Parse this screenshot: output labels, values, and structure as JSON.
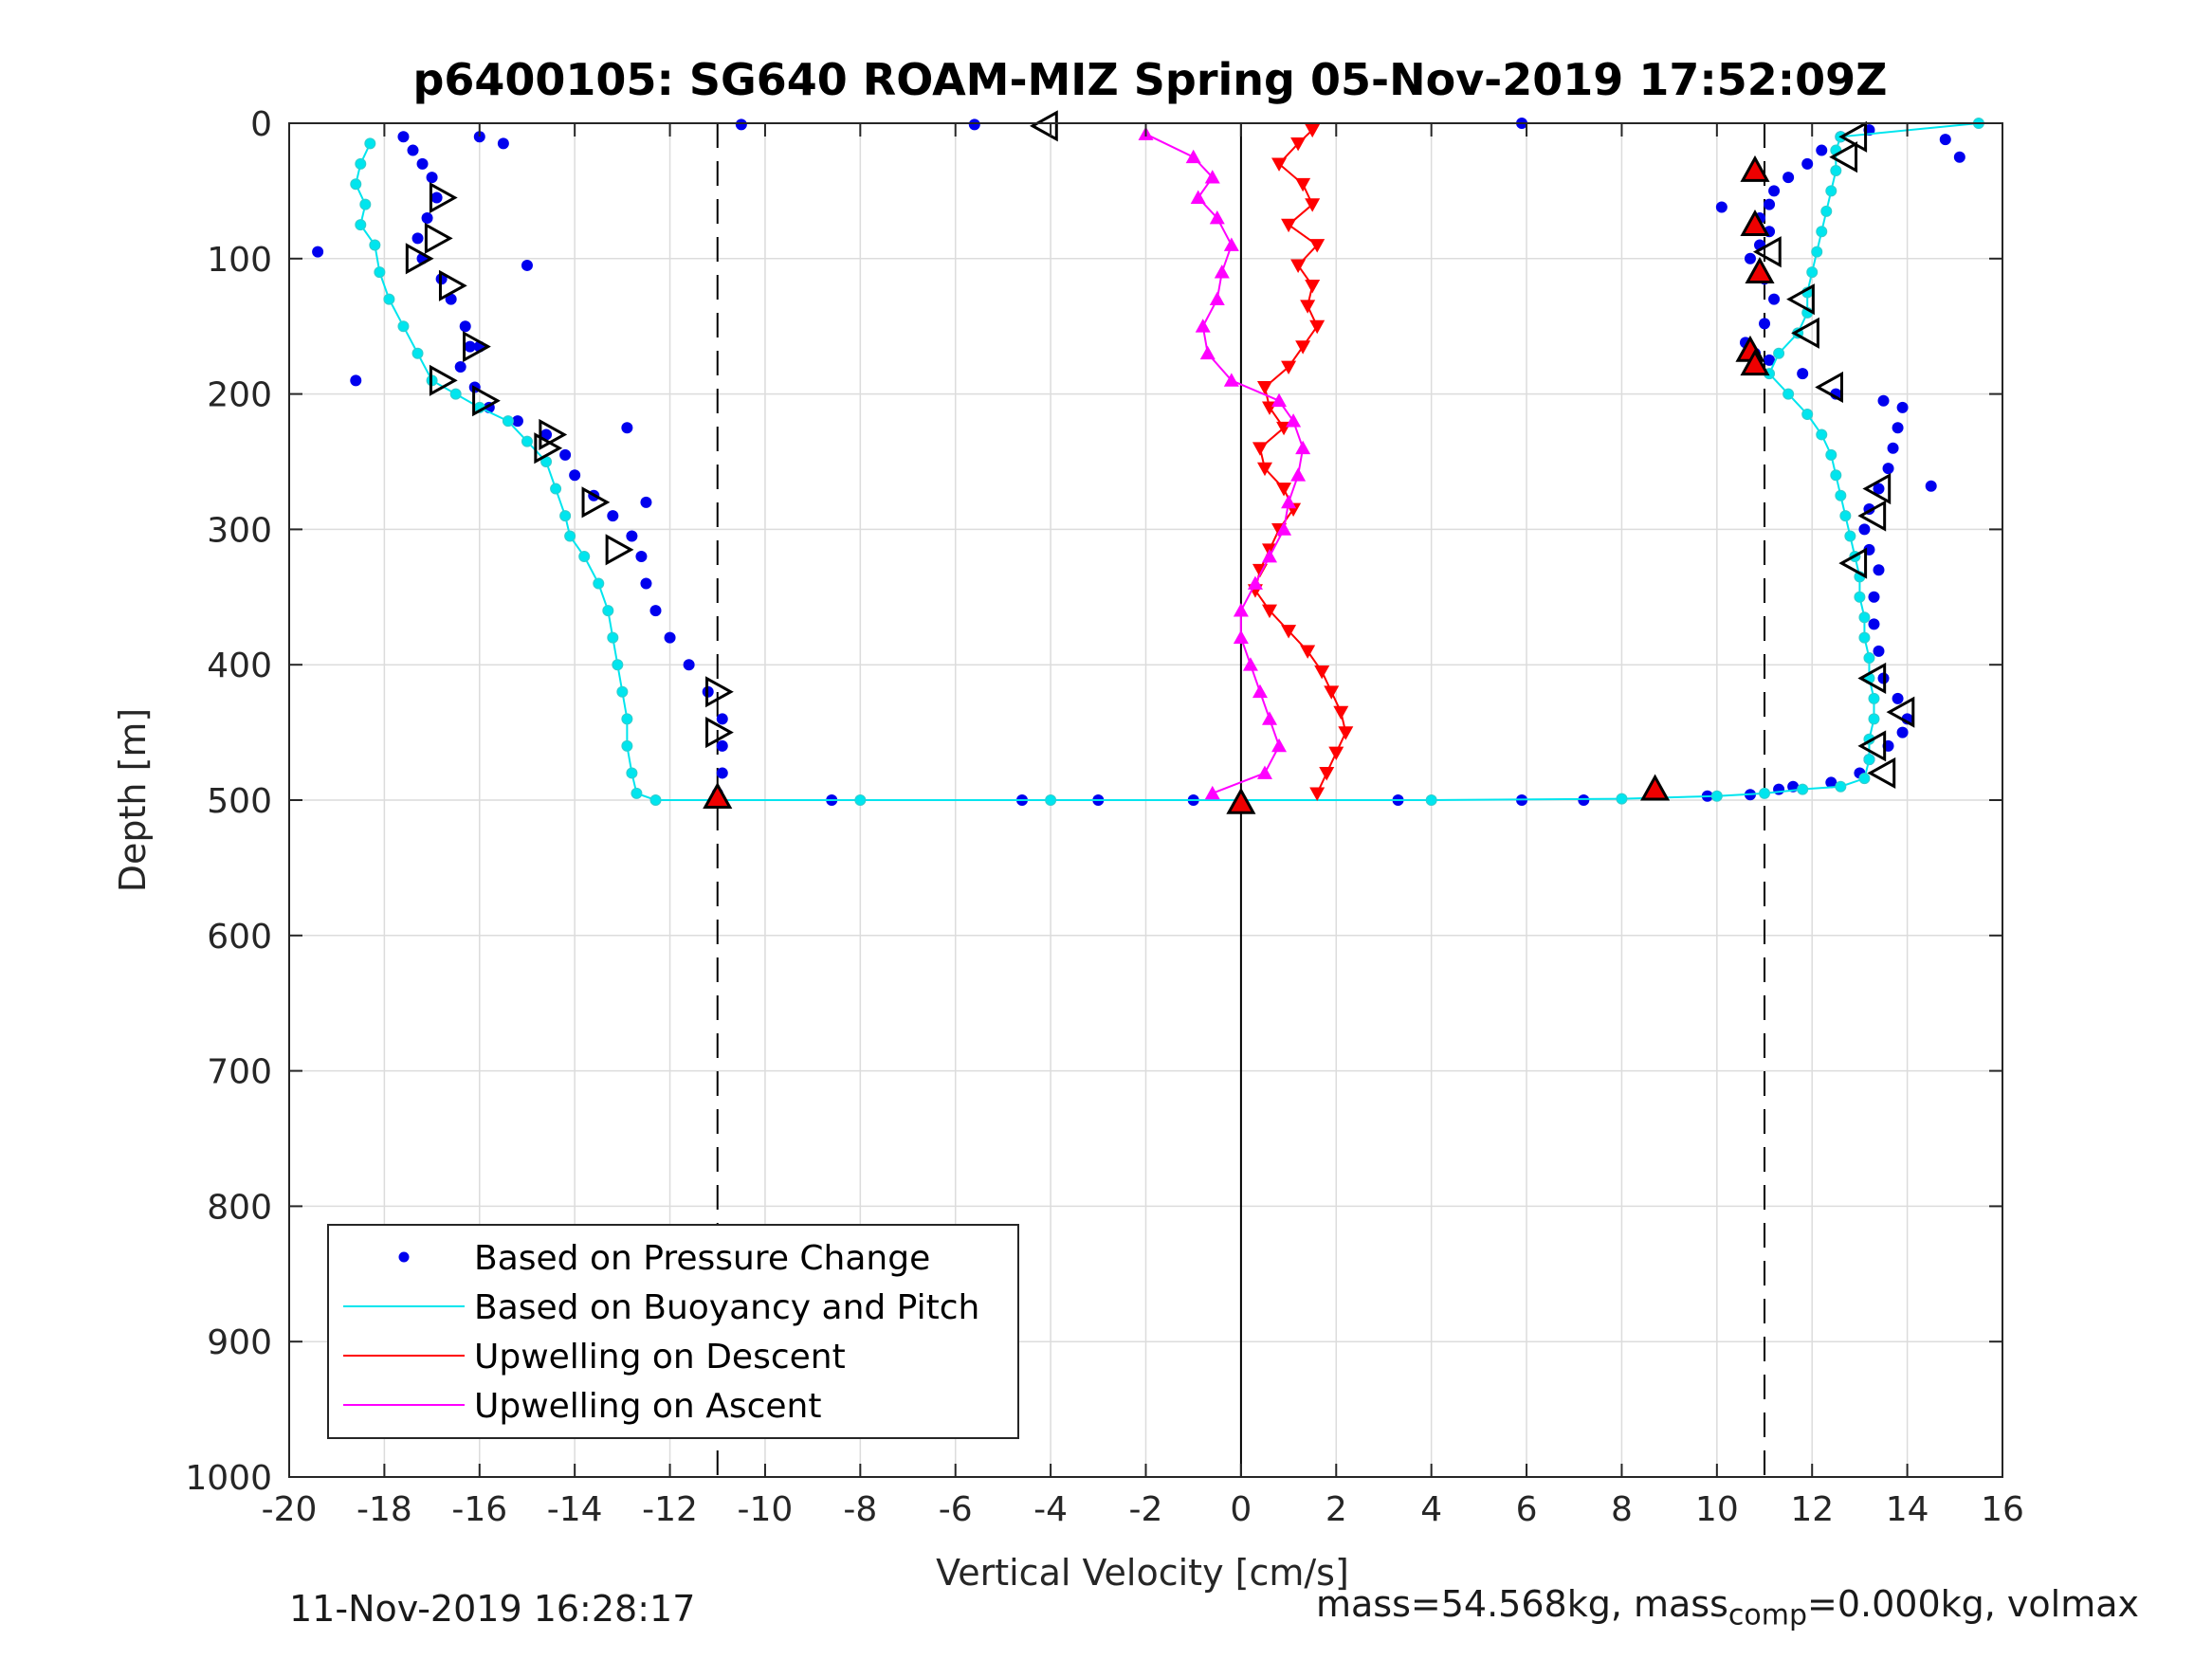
{
  "chart_data": {
    "type": "scatter",
    "title": "p6400105: SG640 ROAM-MIZ Spring 05-Nov-2019 17:52:09Z",
    "xlabel": "Vertical Velocity [cm/s]",
    "ylabel": "Depth [m]",
    "xlim": [
      -20,
      16
    ],
    "ylim": [
      0,
      1000
    ],
    "y_reversed": true,
    "xticks": [
      -20,
      -18,
      -16,
      -14,
      -12,
      -10,
      -8,
      -6,
      -4,
      -2,
      0,
      2,
      4,
      6,
      8,
      10,
      12,
      14,
      16
    ],
    "xtick_labels": [
      "-20",
      "-18",
      "-16",
      "-14",
      "-12",
      "-10",
      "-8",
      "-6",
      "-4",
      "-2",
      "0",
      "2",
      "4",
      "6",
      "8",
      "10",
      "12",
      "14",
      "16"
    ],
    "yticks": [
      0,
      100,
      200,
      300,
      400,
      500,
      600,
      700,
      800,
      900,
      1000
    ],
    "ytick_labels": [
      "0",
      "100",
      "200",
      "300",
      "400",
      "500",
      "600",
      "700",
      "800",
      "900",
      "1000"
    ],
    "grid": true,
    "legend_position": "bottom-left",
    "reference_lines": [
      {
        "x": -11,
        "style": "dashed",
        "color": "#000000"
      },
      {
        "x": 11,
        "style": "dashed",
        "color": "#000000"
      },
      {
        "x": 0,
        "style": "solid",
        "color": "#000000"
      }
    ],
    "series": [
      {
        "name": "Based on Pressure Change",
        "color": "#0000ee",
        "marker": "dot",
        "points": [
          [
            -17.6,
            10
          ],
          [
            -17.4,
            20
          ],
          [
            -17.2,
            30
          ],
          [
            -17.0,
            40
          ],
          [
            -16.9,
            55
          ],
          [
            -17.1,
            70
          ],
          [
            -17.3,
            85
          ],
          [
            -17.2,
            100
          ],
          [
            -16.8,
            115
          ],
          [
            -16.6,
            130
          ],
          [
            -16.3,
            150
          ],
          [
            -16.2,
            165
          ],
          [
            -16.4,
            180
          ],
          [
            -16.1,
            195
          ],
          [
            -15.8,
            210
          ],
          [
            -15.2,
            220
          ],
          [
            -14.6,
            230
          ],
          [
            -14.2,
            245
          ],
          [
            -14.0,
            260
          ],
          [
            -13.6,
            275
          ],
          [
            -13.2,
            290
          ],
          [
            -12.8,
            305
          ],
          [
            -12.6,
            320
          ],
          [
            -12.5,
            340
          ],
          [
            -12.3,
            360
          ],
          [
            -12.0,
            380
          ],
          [
            -11.6,
            400
          ],
          [
            -11.2,
            420
          ],
          [
            -10.9,
            440
          ],
          [
            -10.9,
            460
          ],
          [
            -10.9,
            480
          ],
          [
            -11.0,
            495
          ],
          [
            -16.0,
            10
          ],
          [
            -15.5,
            15
          ],
          [
            -19.4,
            95
          ],
          [
            -18.6,
            190
          ],
          [
            -15.0,
            105
          ],
          [
            -16.0,
            165
          ],
          [
            -12.9,
            225
          ],
          [
            -12.5,
            280
          ],
          [
            -10.5,
            1
          ],
          [
            -5.6,
            1
          ],
          [
            -8.6,
            500
          ],
          [
            -4.6,
            500
          ],
          [
            -3.0,
            500
          ],
          [
            -1.0,
            500
          ],
          [
            3.3,
            500
          ],
          [
            5.9,
            500
          ],
          [
            7.2,
            500
          ],
          [
            9.8,
            497
          ],
          [
            10.7,
            496
          ],
          [
            11.3,
            492
          ],
          [
            11.6,
            490
          ],
          [
            12.4,
            487
          ],
          [
            13.0,
            480
          ],
          [
            13.2,
            470
          ],
          [
            13.6,
            460
          ],
          [
            13.9,
            450
          ],
          [
            14.0,
            440
          ],
          [
            13.8,
            425
          ],
          [
            13.5,
            410
          ],
          [
            13.4,
            390
          ],
          [
            13.3,
            370
          ],
          [
            13.3,
            350
          ],
          [
            13.4,
            330
          ],
          [
            13.2,
            315
          ],
          [
            13.1,
            300
          ],
          [
            13.2,
            285
          ],
          [
            13.4,
            270
          ],
          [
            13.6,
            255
          ],
          [
            13.7,
            240
          ],
          [
            13.8,
            225
          ],
          [
            13.9,
            210
          ],
          [
            13.5,
            205
          ],
          [
            12.5,
            200
          ],
          [
            11.8,
            185
          ],
          [
            11.1,
            175
          ],
          [
            10.8,
            170
          ],
          [
            10.6,
            162
          ],
          [
            11.0,
            148
          ],
          [
            11.2,
            130
          ],
          [
            11.0,
            115
          ],
          [
            10.7,
            100
          ],
          [
            10.9,
            90
          ],
          [
            11.1,
            80
          ],
          [
            10.9,
            70
          ],
          [
            11.1,
            60
          ],
          [
            11.2,
            50
          ],
          [
            11.5,
            40
          ],
          [
            11.9,
            30
          ],
          [
            12.2,
            20
          ],
          [
            12.6,
            10
          ],
          [
            13.2,
            5
          ],
          [
            10.1,
            62
          ],
          [
            14.8,
            12
          ],
          [
            15.1,
            25
          ],
          [
            14.5,
            268
          ],
          [
            5.9,
            0
          ]
        ]
      },
      {
        "name": "Based on Buoyancy and Pitch",
        "color": "#00e5ee",
        "marker": "line+circle",
        "points": [
          [
            -18.3,
            15
          ],
          [
            -18.5,
            30
          ],
          [
            -18.6,
            45
          ],
          [
            -18.4,
            60
          ],
          [
            -18.5,
            75
          ],
          [
            -18.2,
            90
          ],
          [
            -18.1,
            110
          ],
          [
            -17.9,
            130
          ],
          [
            -17.6,
            150
          ],
          [
            -17.3,
            170
          ],
          [
            -17.0,
            190
          ],
          [
            -16.5,
            200
          ],
          [
            -16.0,
            210
          ],
          [
            -15.4,
            220
          ],
          [
            -15.0,
            235
          ],
          [
            -14.6,
            250
          ],
          [
            -14.4,
            270
          ],
          [
            -14.2,
            290
          ],
          [
            -14.1,
            305
          ],
          [
            -13.8,
            320
          ],
          [
            -13.5,
            340
          ],
          [
            -13.3,
            360
          ],
          [
            -13.2,
            380
          ],
          [
            -13.1,
            400
          ],
          [
            -13.0,
            420
          ],
          [
            -12.9,
            440
          ],
          [
            -12.9,
            460
          ],
          [
            -12.8,
            480
          ],
          [
            -12.7,
            495
          ],
          [
            -12.3,
            500
          ],
          [
            -8.0,
            500
          ],
          [
            -4.0,
            500
          ],
          [
            0.0,
            500
          ],
          [
            4.0,
            500
          ],
          [
            8.0,
            499
          ],
          [
            10.0,
            497
          ],
          [
            11.0,
            495
          ],
          [
            11.8,
            492
          ],
          [
            12.6,
            490
          ],
          [
            13.1,
            484
          ],
          [
            13.2,
            470
          ],
          [
            13.2,
            455
          ],
          [
            13.3,
            440
          ],
          [
            13.3,
            425
          ],
          [
            13.2,
            410
          ],
          [
            13.2,
            395
          ],
          [
            13.1,
            380
          ],
          [
            13.1,
            365
          ],
          [
            13.0,
            350
          ],
          [
            13.0,
            335
          ],
          [
            12.9,
            320
          ],
          [
            12.8,
            305
          ],
          [
            12.7,
            290
          ],
          [
            12.6,
            275
          ],
          [
            12.5,
            260
          ],
          [
            12.4,
            245
          ],
          [
            12.2,
            230
          ],
          [
            11.9,
            215
          ],
          [
            11.5,
            200
          ],
          [
            11.1,
            185
          ],
          [
            11.3,
            170
          ],
          [
            11.7,
            155
          ],
          [
            11.9,
            140
          ],
          [
            11.9,
            125
          ],
          [
            12.0,
            110
          ],
          [
            12.1,
            95
          ],
          [
            12.2,
            80
          ],
          [
            12.3,
            65
          ],
          [
            12.4,
            50
          ],
          [
            12.5,
            35
          ],
          [
            12.5,
            20
          ],
          [
            12.6,
            10
          ],
          [
            15.5,
            0
          ]
        ]
      },
      {
        "name": "Upwelling on Descent",
        "color": "#ff0000",
        "marker": "triangle-down",
        "points": [
          [
            1.5,
            5
          ],
          [
            1.2,
            15
          ],
          [
            0.8,
            30
          ],
          [
            1.3,
            45
          ],
          [
            1.5,
            60
          ],
          [
            1.0,
            75
          ],
          [
            1.6,
            90
          ],
          [
            1.2,
            105
          ],
          [
            1.5,
            120
          ],
          [
            1.4,
            135
          ],
          [
            1.6,
            150
          ],
          [
            1.3,
            165
          ],
          [
            1.0,
            180
          ],
          [
            0.5,
            195
          ],
          [
            0.6,
            210
          ],
          [
            0.9,
            225
          ],
          [
            0.4,
            240
          ],
          [
            0.5,
            255
          ],
          [
            0.9,
            270
          ],
          [
            1.1,
            285
          ],
          [
            0.8,
            300
          ],
          [
            0.6,
            315
          ],
          [
            0.4,
            330
          ],
          [
            0.3,
            345
          ],
          [
            0.6,
            360
          ],
          [
            1.0,
            375
          ],
          [
            1.4,
            390
          ],
          [
            1.7,
            405
          ],
          [
            1.9,
            420
          ],
          [
            2.1,
            435
          ],
          [
            2.2,
            450
          ],
          [
            2.0,
            465
          ],
          [
            1.8,
            480
          ],
          [
            1.6,
            495
          ]
        ]
      },
      {
        "name": "Upwelling on Ascent",
        "color": "#ff00ff",
        "marker": "triangle-up",
        "points": [
          [
            -2.0,
            8
          ],
          [
            -1.0,
            25
          ],
          [
            -0.6,
            40
          ],
          [
            -0.9,
            55
          ],
          [
            -0.5,
            70
          ],
          [
            -0.2,
            90
          ],
          [
            -0.4,
            110
          ],
          [
            -0.5,
            130
          ],
          [
            -0.8,
            150
          ],
          [
            -0.7,
            170
          ],
          [
            -0.2,
            190
          ],
          [
            0.8,
            205
          ],
          [
            1.1,
            220
          ],
          [
            1.3,
            240
          ],
          [
            1.2,
            260
          ],
          [
            1.0,
            280
          ],
          [
            0.9,
            300
          ],
          [
            0.6,
            320
          ],
          [
            0.3,
            340
          ],
          [
            0.0,
            360
          ],
          [
            0.0,
            380
          ],
          [
            0.2,
            400
          ],
          [
            0.4,
            420
          ],
          [
            0.6,
            440
          ],
          [
            0.8,
            460
          ],
          [
            0.5,
            480
          ],
          [
            -0.6,
            495
          ]
        ]
      }
    ],
    "markers_black_triangles": {
      "left_profile": [
        [
          -16.8,
          55
        ],
        [
          -16.9,
          85
        ],
        [
          -17.3,
          100
        ],
        [
          -16.6,
          120
        ],
        [
          -16.1,
          165
        ],
        [
          -16.8,
          190
        ],
        [
          -15.9,
          205
        ],
        [
          -14.5,
          230
        ],
        [
          -14.6,
          240
        ],
        [
          -13.6,
          280
        ],
        [
          -13.1,
          315
        ],
        [
          -11.0,
          420
        ],
        [
          -11.0,
          450
        ],
        [
          -4.1,
          2
        ]
      ],
      "right_profile": [
        [
          12.9,
          10
        ],
        [
          12.7,
          25
        ],
        [
          11.1,
          95
        ],
        [
          11.8,
          130
        ],
        [
          11.9,
          155
        ],
        [
          12.4,
          195
        ],
        [
          13.4,
          270
        ],
        [
          13.3,
          290
        ],
        [
          12.9,
          325
        ],
        [
          13.3,
          410
        ],
        [
          13.9,
          435
        ],
        [
          13.3,
          460
        ],
        [
          13.5,
          480
        ]
      ]
    },
    "markers_red_triangles": [
      [
        -11.0,
        498
      ],
      [
        0.0,
        502
      ],
      [
        8.7,
        492
      ],
      [
        10.8,
        35
      ],
      [
        10.8,
        75
      ],
      [
        10.9,
        110
      ],
      [
        10.7,
        168
      ],
      [
        10.8,
        178
      ]
    ],
    "legend": [
      {
        "label": "Based on Pressure Change",
        "color": "#0000ee",
        "style": "dot"
      },
      {
        "label": "Based on Buoyancy and Pitch",
        "color": "#00e5ee",
        "style": "line"
      },
      {
        "label": "Upwelling on Descent",
        "color": "#ff0000",
        "style": "line"
      },
      {
        "label": "Upwelling on Ascent",
        "color": "#ff00ff",
        "style": "line"
      }
    ]
  },
  "footer": {
    "left": "11-Nov-2019 16:28:17",
    "right_prefix": "mass=54.568kg, mass",
    "right_sub": "comp",
    "right_suffix": "=0.000kg, volmax"
  }
}
